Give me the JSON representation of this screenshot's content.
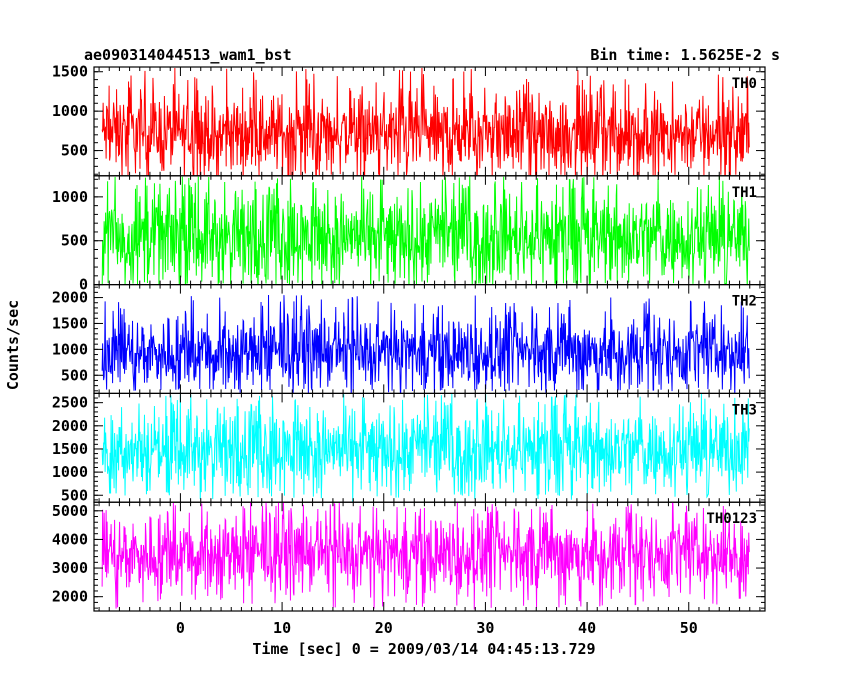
{
  "header": {
    "left_title": "ae090314044513_wam1_bst",
    "right_title": "Bin time: 1.5625E-2 s"
  },
  "chart_data": {
    "type": "line",
    "title": "ae090314044513_wam1_bst",
    "subtitle": "Bin time: 1.5625E-2 s",
    "xlabel": "Time [sec] 0 = 2009/03/14 04:45:13.729",
    "ylabel": "Counts/sec",
    "xlim": [
      -8.5,
      57.5
    ],
    "x_ticks": [
      0,
      10,
      20,
      30,
      40,
      50
    ],
    "x_data_range": [
      -7.7,
      56.0
    ],
    "x_label_texts": [
      "0",
      "10",
      "20",
      "30",
      "40",
      "50"
    ],
    "panels": [
      {
        "name": "TH0",
        "color": "#ff0000",
        "ylim": [
          180,
          1560
        ],
        "y_ticks": [
          500,
          1000,
          1500
        ],
        "y_minor_step": 100,
        "y_tick_labels": [
          "500",
          "1000",
          "1500"
        ],
        "mean": 720,
        "typical_min": 250,
        "typical_max": 1300,
        "extreme_min": 180,
        "extreme_max": 1560
      },
      {
        "name": "TH1",
        "color": "#00ff00",
        "ylim": [
          0,
          1240
        ],
        "y_ticks": [
          0,
          500,
          1000
        ],
        "y_minor_step": 100,
        "y_tick_labels": [
          "0",
          "500",
          "1000"
        ],
        "mean": 550,
        "typical_min": 50,
        "typical_max": 1100,
        "extreme_min": 0,
        "extreme_max": 1240
      },
      {
        "name": "TH2",
        "color": "#0000ff",
        "ylim": [
          150,
          2250
        ],
        "y_ticks": [
          500,
          1000,
          1500,
          2000
        ],
        "y_minor_step": 100,
        "y_tick_labels": [
          "500",
          "1000",
          "1500",
          "2000"
        ],
        "mean": 950,
        "typical_min": 280,
        "typical_max": 1700,
        "extreme_min": 200,
        "extreme_max": 2050
      },
      {
        "name": "TH3",
        "color": "#00ffff",
        "ylim": [
          350,
          2700
        ],
        "y_ticks": [
          500,
          1000,
          1500,
          2000,
          2500
        ],
        "y_minor_step": 100,
        "y_tick_labels": [
          "500",
          "1000",
          "1500",
          "2000",
          "2500"
        ],
        "mean": 1500,
        "typical_min": 600,
        "typical_max": 2400,
        "extreme_min": 400,
        "extreme_max": 2700
      },
      {
        "name": "TH0123",
        "color": "#ff00ff",
        "ylim": [
          1500,
          5300
        ],
        "y_ticks": [
          2000,
          3000,
          4000,
          5000
        ],
        "y_minor_step": 200,
        "y_tick_labels": [
          "2000",
          "3000",
          "4000",
          "5000"
        ],
        "mean": 3500,
        "typical_min": 2000,
        "typical_max": 4800,
        "extreme_min": 1550,
        "extreme_max": 5300
      }
    ]
  }
}
